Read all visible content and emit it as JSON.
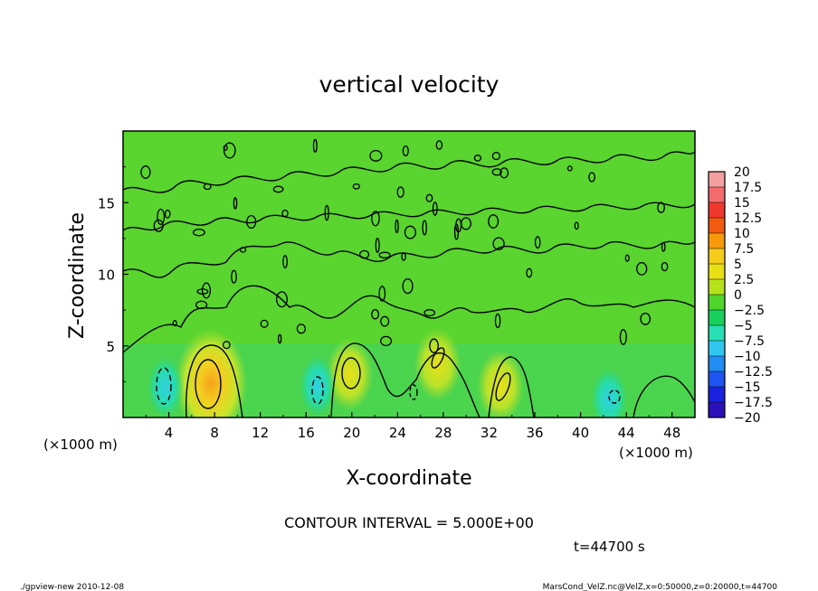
{
  "chart_data": {
    "type": "heatmap",
    "title": "vertical velocity",
    "xlabel": "X-coordinate",
    "ylabel": "Z-coordinate",
    "x_unit_left": "(×1000 m)",
    "x_unit_right": "(×1000 m)",
    "xlim": [
      0,
      50
    ],
    "ylim": [
      0,
      20
    ],
    "x_ticks": [
      4,
      8,
      12,
      16,
      20,
      24,
      28,
      32,
      36,
      40,
      44,
      48
    ],
    "y_ticks": [
      5,
      10,
      15
    ],
    "contour_interval_label": "CONTOUR INTERVAL = 5.000E+00",
    "time_label": "t=44700 s",
    "colorbar": {
      "levels": [
        20,
        17.5,
        15,
        12.5,
        10,
        7.5,
        5,
        2.5,
        0,
        -2.5,
        -5,
        -7.5,
        -10,
        -12.5,
        -15,
        -17.5,
        -20
      ],
      "colors": [
        "#f4a0a0",
        "#f36b6b",
        "#f0382e",
        "#f25a10",
        "#f79a0a",
        "#f5cc1a",
        "#e8e015",
        "#b5e21a",
        "#4fd62c",
        "#18d05c",
        "#26dfb2",
        "#2fc6f0",
        "#1f8df2",
        "#1e55f0",
        "#1a22e0",
        "#2a10b8",
        "#6a1ab4"
      ]
    },
    "features": [
      {
        "kind": "updraft",
        "x": 7.7,
        "z": 2.4,
        "peak": 7.5
      },
      {
        "kind": "updraft",
        "x": 19.8,
        "z": 3.0,
        "peak": 5
      },
      {
        "kind": "updraft",
        "x": 27.5,
        "z": 3.7,
        "peak": 5
      },
      {
        "kind": "updraft",
        "x": 33.0,
        "z": 2.2,
        "peak": 5
      },
      {
        "kind": "downdraft",
        "x": 3.7,
        "z": 2.1,
        "peak": -5
      },
      {
        "kind": "downdraft",
        "x": 17.0,
        "z": 2.2,
        "peak": -5
      },
      {
        "kind": "downdraft",
        "x": 42.5,
        "z": 1.3,
        "peak": -5
      }
    ]
  },
  "footer_left": "./gpview-new  2010-12-08",
  "footer_right": "MarsCond_VelZ.nc@VelZ,x=0:50000,z=0:20000,t=44700"
}
